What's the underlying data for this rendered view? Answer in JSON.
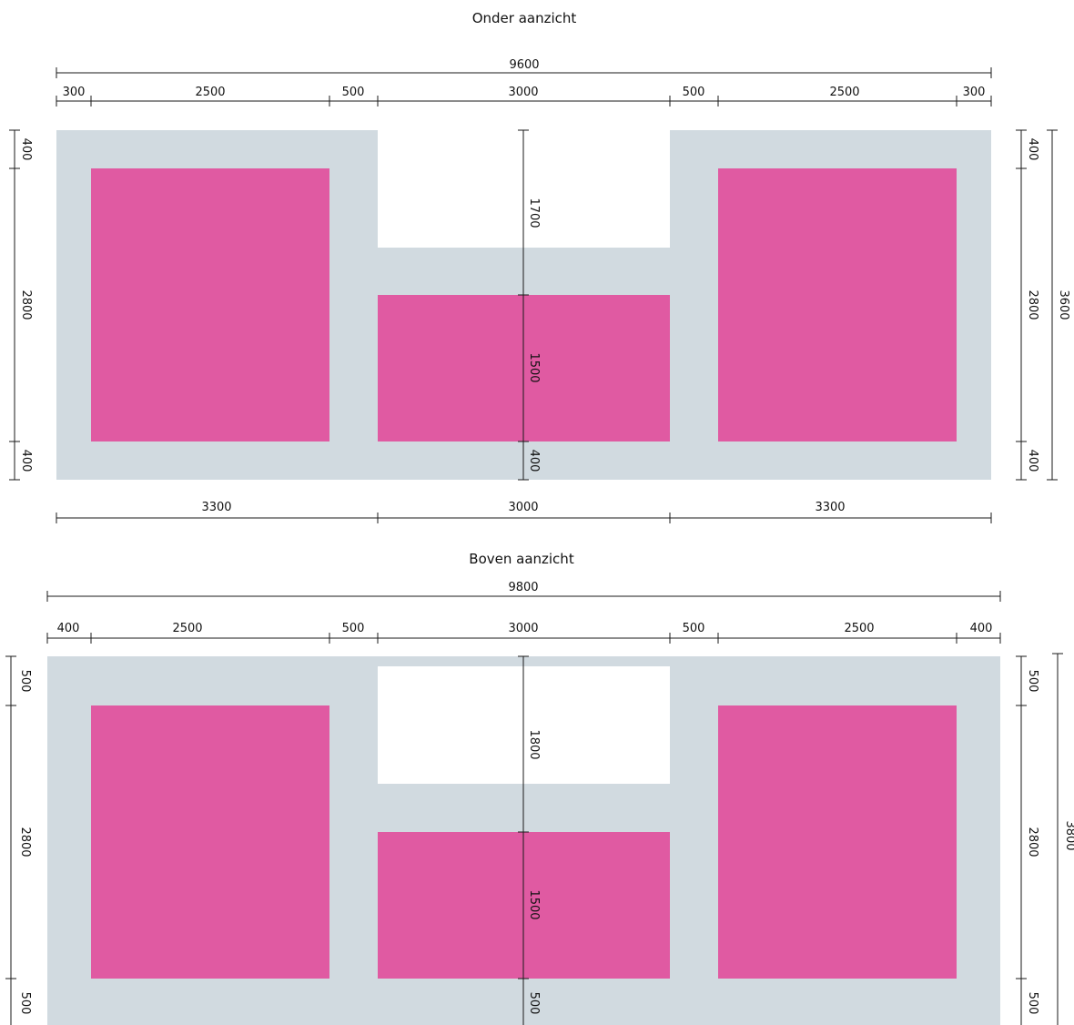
{
  "colors": {
    "slab": "#d1dae0",
    "opening": "#e05aa2",
    "cutout": "#ffffff",
    "line": "#1a1a1a"
  },
  "views": [
    {
      "title": "Onder aanzicht",
      "overall_width": "9600",
      "top_segments": [
        "300",
        "2500",
        "500",
        "3000",
        "500",
        "2500",
        "300"
      ],
      "bottom_segments": [
        "3300",
        "3000",
        "3300"
      ],
      "left_segments": [
        "400",
        "2800",
        "400"
      ],
      "right_segments": [
        "400",
        "2800",
        "400"
      ],
      "overall_height": "3600",
      "center_segments": [
        "1700",
        "1500",
        "400"
      ]
    },
    {
      "title": "Boven aanzicht",
      "overall_width": "9800",
      "top_segments": [
        "400",
        "2500",
        "500",
        "3000",
        "500",
        "2500",
        "400"
      ],
      "left_segments": [
        "500",
        "2800",
        "500"
      ],
      "right_segments": [
        "500",
        "2800",
        "500"
      ],
      "overall_height": "3800",
      "center_segments": [
        "1800",
        "1500",
        "500"
      ]
    }
  ]
}
